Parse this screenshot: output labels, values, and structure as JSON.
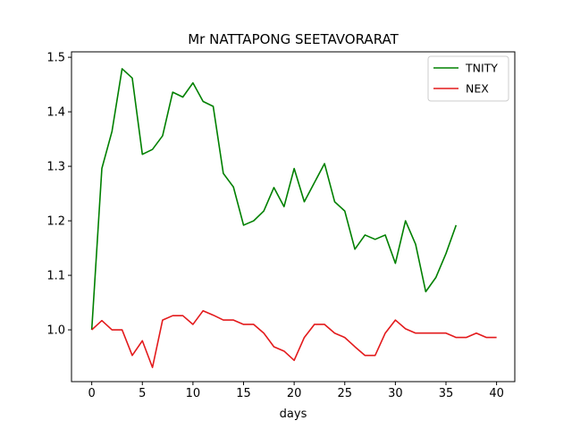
{
  "chart_data": {
    "type": "line",
    "title": "Mr NATTAPONG SEETAVORARAT",
    "xlabel": "days",
    "ylabel": "",
    "xlim": [
      -2,
      41.8
    ],
    "ylim": [
      0.905,
      1.51
    ],
    "xticks": [
      0,
      5,
      10,
      15,
      20,
      25,
      30,
      35,
      40
    ],
    "yticks": [
      1.0,
      1.1,
      1.2,
      1.3,
      1.4,
      1.5
    ],
    "ytick_labels": [
      "1.0",
      "1.1",
      "1.2",
      "1.3",
      "1.4",
      "1.5"
    ],
    "grid": false,
    "legend_position": "top-right",
    "series": [
      {
        "name": "TNITY",
        "color": "#008000",
        "x": [
          0,
          1,
          2,
          3,
          4,
          5,
          6,
          7,
          8,
          9,
          10,
          11,
          12,
          13,
          14,
          15,
          16,
          17,
          18,
          19,
          20,
          21,
          22,
          23,
          24,
          25,
          26,
          27,
          28,
          29,
          30,
          31,
          32,
          33,
          34,
          35,
          36
        ],
        "values": [
          1.0,
          1.296,
          1.364,
          1.479,
          1.462,
          1.322,
          1.331,
          1.356,
          1.436,
          1.427,
          1.453,
          1.419,
          1.41,
          1.287,
          1.262,
          1.192,
          1.2,
          1.218,
          1.261,
          1.226,
          1.296,
          1.235,
          1.27,
          1.305,
          1.235,
          1.218,
          1.148,
          1.174,
          1.166,
          1.174,
          1.122,
          1.2,
          1.157,
          1.07,
          1.096,
          1.14,
          1.192
        ]
      },
      {
        "name": "NEX",
        "color": "#e31a1c",
        "x": [
          0,
          1,
          2,
          3,
          4,
          5,
          6,
          7,
          8,
          9,
          10,
          11,
          12,
          13,
          14,
          15,
          16,
          17,
          18,
          19,
          20,
          21,
          22,
          23,
          24,
          25,
          26,
          27,
          28,
          29,
          30,
          31,
          32,
          33,
          34,
          35,
          36,
          37,
          38,
          39,
          40
        ],
        "values": [
          1.0,
          1.017,
          1.0,
          1.0,
          0.953,
          0.98,
          0.931,
          1.018,
          1.026,
          1.026,
          1.01,
          1.035,
          1.027,
          1.018,
          1.018,
          1.01,
          1.01,
          0.994,
          0.969,
          0.961,
          0.944,
          0.986,
          1.01,
          1.01,
          0.994,
          0.986,
          0.969,
          0.953,
          0.953,
          0.994,
          1.018,
          1.002,
          0.994,
          0.994,
          0.994,
          0.994,
          0.986,
          0.986,
          0.994,
          0.986,
          0.986
        ]
      }
    ]
  }
}
